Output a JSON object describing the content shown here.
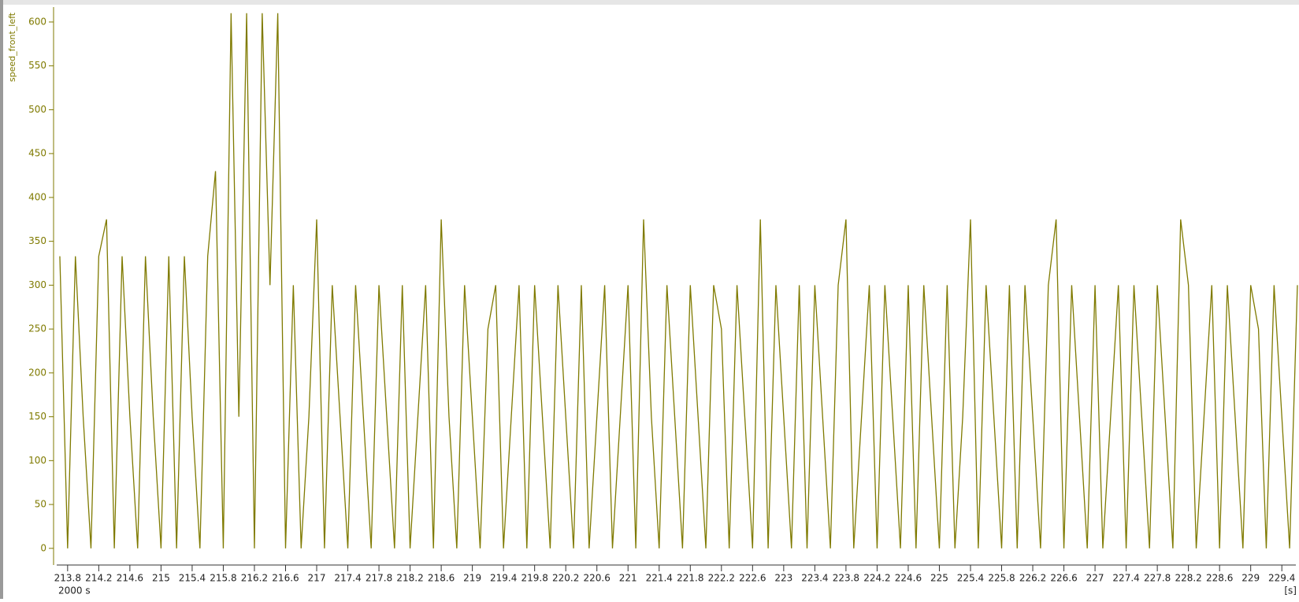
{
  "chart_data": {
    "type": "line",
    "y_label": "speed_front_left",
    "x_unit_label": "[s]",
    "x_offset_label": "2000 s",
    "x": [
      213.7,
      213.8,
      213.9,
      214.0,
      214.1,
      214.2,
      214.3,
      214.4,
      214.5,
      214.6,
      214.7,
      214.8,
      214.9,
      215.0,
      215.1,
      215.2,
      215.3,
      215.4,
      215.5,
      215.6,
      215.7,
      215.8,
      215.9,
      216.0,
      216.1,
      216.2,
      216.3,
      216.4,
      216.5,
      216.6,
      216.7,
      216.8,
      216.9,
      217.0,
      217.1,
      217.2,
      217.3,
      217.4,
      217.5,
      217.6,
      217.7,
      217.8,
      217.9,
      218.0,
      218.1,
      218.2,
      218.3,
      218.4,
      218.5,
      218.6,
      218.7,
      218.8,
      218.9,
      219.0,
      219.1,
      219.2,
      219.3,
      219.4,
      219.5,
      219.6,
      219.7,
      219.8,
      219.9,
      220.0,
      220.1,
      220.2,
      220.3,
      220.4,
      220.5,
      220.6,
      220.7,
      220.8,
      220.9,
      221.0,
      221.1,
      221.2,
      221.3,
      221.4,
      221.5,
      221.6,
      221.7,
      221.8,
      221.9,
      222.0,
      222.1,
      222.2,
      222.3,
      222.4,
      222.5,
      222.6,
      222.7,
      222.8,
      222.9,
      223.0,
      223.1,
      223.2,
      223.3,
      223.4,
      223.5,
      223.6,
      223.7,
      223.8,
      223.9,
      224.0,
      224.1,
      224.2,
      224.3,
      224.4,
      224.5,
      224.6,
      224.7,
      224.8,
      224.9,
      225.0,
      225.1,
      225.2,
      225.3,
      225.4,
      225.5,
      225.6,
      225.7,
      225.8,
      225.9,
      226.0,
      226.1,
      226.2,
      226.3,
      226.4,
      226.5,
      226.6,
      226.7,
      226.8,
      226.9,
      227.0,
      227.1,
      227.2,
      227.3,
      227.4,
      227.5,
      227.6,
      227.7,
      227.8,
      227.9,
      228.0,
      228.1,
      228.2,
      228.3,
      228.4,
      228.5,
      228.6,
      228.7,
      228.8,
      228.9,
      229.0,
      229.1,
      229.2,
      229.3,
      229.4,
      229.5,
      229.6
    ],
    "series": [
      {
        "name": "speed_front_left",
        "color": "#7f7a00",
        "values": [
          333,
          0,
          333,
          150,
          0,
          333,
          375,
          0,
          333,
          150,
          0,
          333,
          150,
          0,
          333,
          0,
          333,
          150,
          0,
          333,
          430,
          0,
          610,
          150,
          610,
          0,
          610,
          300,
          610,
          0,
          300,
          0,
          150,
          375,
          0,
          300,
          150,
          0,
          300,
          150,
          0,
          300,
          150,
          0,
          300,
          0,
          150,
          300,
          0,
          375,
          150,
          0,
          300,
          150,
          0,
          250,
          300,
          0,
          150,
          300,
          0,
          300,
          150,
          0,
          300,
          150,
          0,
          300,
          0,
          150,
          300,
          0,
          150,
          300,
          0,
          375,
          150,
          0,
          300,
          150,
          0,
          300,
          150,
          0,
          300,
          250,
          0,
          300,
          150,
          0,
          375,
          0,
          300,
          150,
          0,
          300,
          0,
          300,
          150,
          0,
          300,
          375,
          0,
          150,
          300,
          0,
          300,
          150,
          0,
          300,
          0,
          300,
          150,
          0,
          300,
          0,
          150,
          375,
          0,
          300,
          150,
          0,
          300,
          0,
          300,
          150,
          0,
          300,
          375,
          0,
          300,
          150,
          0,
          300,
          0,
          150,
          300,
          0,
          300,
          150,
          0,
          300,
          150,
          0,
          375,
          300,
          0,
          150,
          300,
          0,
          300,
          150,
          0,
          300,
          250,
          0,
          300,
          150,
          0,
          300
        ]
      }
    ],
    "xlim": [
      213.66,
      229.58
    ],
    "ylim": [
      -19,
      617
    ],
    "xticks": [
      213.8,
      214.2,
      214.6,
      215,
      215.4,
      215.8,
      216.2,
      216.6,
      217,
      217.4,
      217.8,
      218.2,
      218.6,
      219,
      219.4,
      219.8,
      220.2,
      220.6,
      221,
      221.4,
      221.8,
      222.2,
      222.6,
      223,
      223.4,
      223.8,
      224.2,
      224.6,
      225,
      225.4,
      225.8,
      226.2,
      226.6,
      227,
      227.4,
      227.8,
      228.2,
      228.6,
      229,
      229.4
    ],
    "yticks": [
      0,
      50,
      100,
      150,
      200,
      250,
      300,
      350,
      400,
      450,
      500,
      550,
      600
    ]
  }
}
